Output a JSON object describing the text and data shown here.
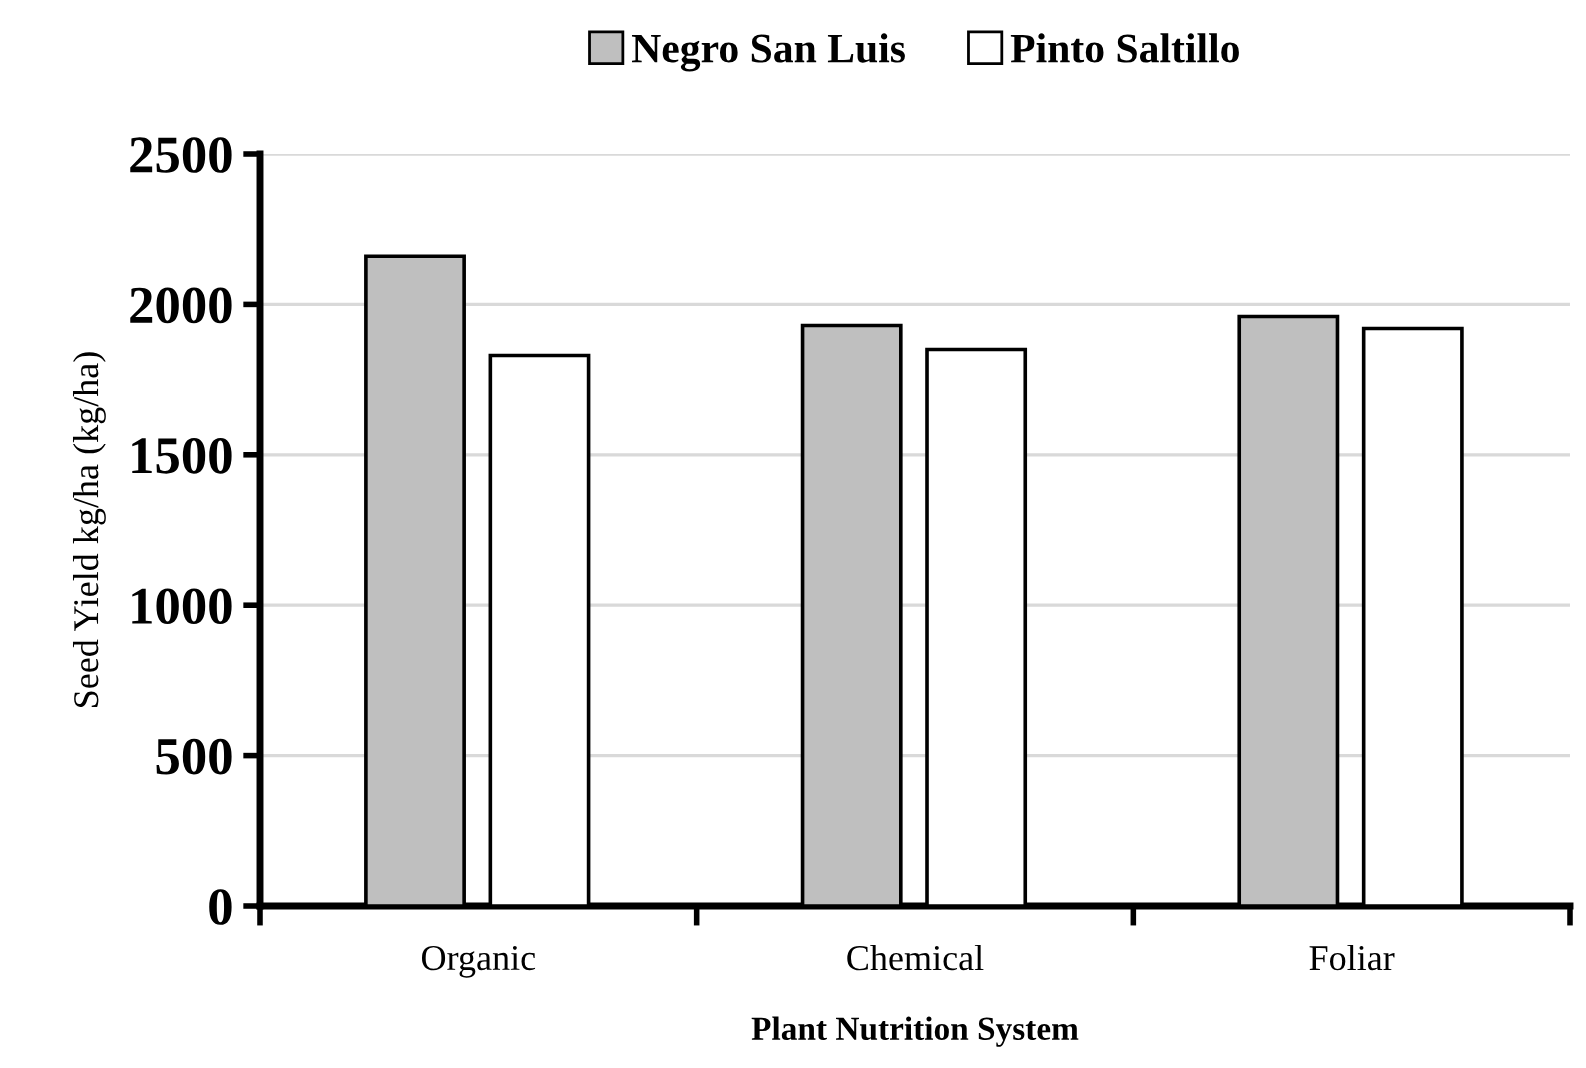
{
  "chart_data": {
    "type": "bar",
    "categories": [
      "Organic",
      "Chemical",
      "Foliar"
    ],
    "series": [
      {
        "name": "Negro San Luis",
        "color": "#bfbfbf",
        "values": [
          2160,
          1930,
          1960
        ]
      },
      {
        "name": "Pinto Saltillo",
        "color": "#ffffff",
        "values": [
          1830,
          1850,
          1920
        ]
      }
    ],
    "xlabel": "Plant Nutrition System",
    "ylabel": "Seed Yield kg/ha (kg/ha)",
    "ylim": [
      0,
      2500
    ],
    "yticks": [
      0,
      500,
      1000,
      1500,
      2000,
      2500
    ],
    "grid": "y",
    "legend": "top"
  }
}
